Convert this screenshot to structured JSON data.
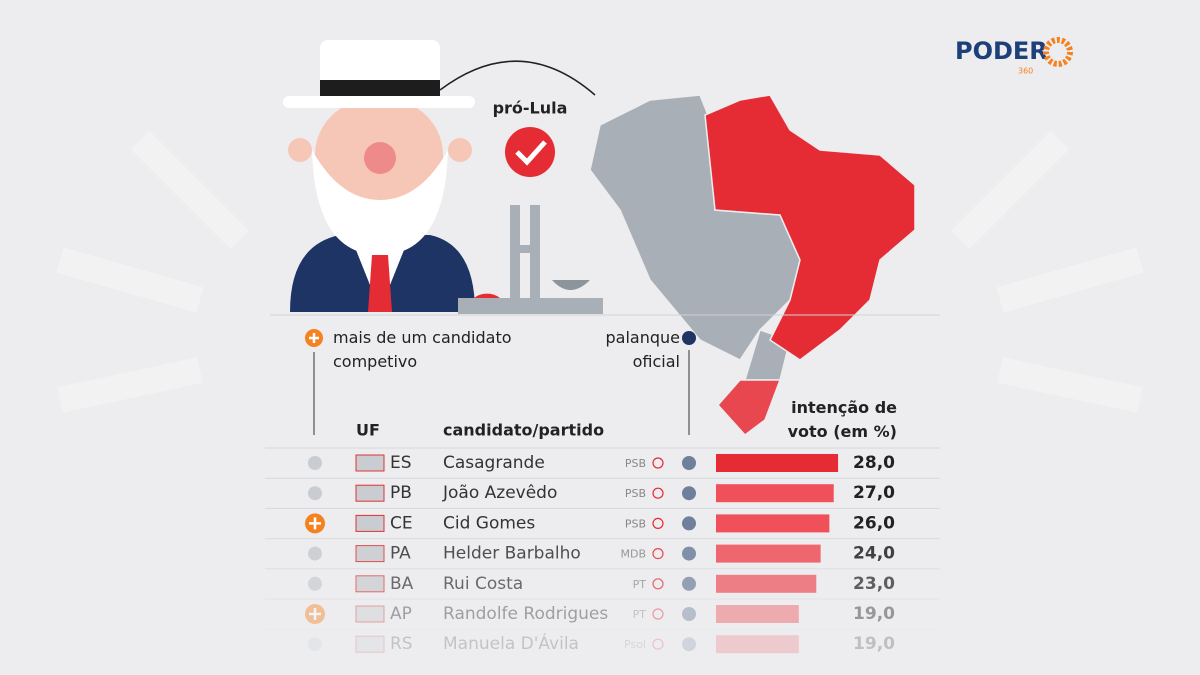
{
  "header": {
    "brand": "PODER",
    "brand_sub": "360",
    "tag": "pró-Lula"
  },
  "legend": {
    "competitive": "mais de um candidato competivo",
    "official": "palanque oficial"
  },
  "table": {
    "columns": [
      "UF",
      "candidato/partido",
      "intenção de voto (em %)"
    ],
    "rows": [
      {
        "uf": "ES",
        "candidate": "Casagrande",
        "party": "PSB",
        "value": 28,
        "value_label": "28,0",
        "competitive": false
      },
      {
        "uf": "PB",
        "candidate": "João Azevêdo",
        "party": "PSB",
        "value": 27,
        "value_label": "27,0",
        "competitive": false
      },
      {
        "uf": "CE",
        "candidate": "Cid Gomes",
        "party": "PSB",
        "value": 26,
        "value_label": "26,0",
        "competitive": true
      },
      {
        "uf": "PA",
        "candidate": "Helder Barbalho",
        "party": "MDB",
        "value": 24,
        "value_label": "24,0",
        "competitive": false
      },
      {
        "uf": "BA",
        "candidate": "Rui Costa",
        "party": "PT",
        "value": 23,
        "value_label": "23,0",
        "competitive": false
      },
      {
        "uf": "AP",
        "candidate": "Randolfe Rodrigues",
        "party": "PT",
        "value": 19,
        "value_label": "19,0",
        "competitive": true
      },
      {
        "uf": "RS",
        "candidate": "Manuela D'Ávila",
        "party": "Psol",
        "value": 19,
        "value_label": "19,0",
        "competitive": false
      }
    ]
  }
}
